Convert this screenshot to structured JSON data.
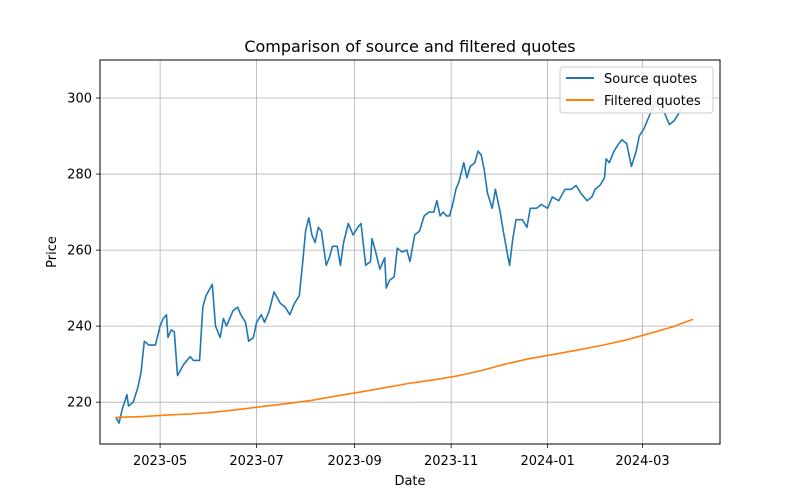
{
  "chart_data": {
    "type": "line",
    "title": "Comparison of source and filtered quotes",
    "xlabel": "Date",
    "ylabel": "Price",
    "xlim": [
      "2023-03-24",
      "2024-04-19"
    ],
    "ylim": [
      209,
      310
    ],
    "x_ticks": [
      "2023-05",
      "2023-07",
      "2023-09",
      "2023-11",
      "2024-01",
      "2024-03"
    ],
    "y_ticks": [
      220,
      240,
      260,
      280,
      300
    ],
    "grid": true,
    "legend_position": "top-right",
    "colors": {
      "source": "#1f77b4",
      "filtered": "#ff7f0e"
    },
    "series": [
      {
        "name": "Source quotes",
        "points": [
          [
            "2023-04-03",
            216
          ],
          [
            "2023-04-05",
            214.5
          ],
          [
            "2023-04-07",
            218
          ],
          [
            "2023-04-10",
            222
          ],
          [
            "2023-04-11",
            219
          ],
          [
            "2023-04-14",
            220
          ],
          [
            "2023-04-17",
            224
          ],
          [
            "2023-04-19",
            228
          ],
          [
            "2023-04-21",
            236
          ],
          [
            "2023-04-24",
            235
          ],
          [
            "2023-04-28",
            235
          ],
          [
            "2023-05-01",
            240
          ],
          [
            "2023-05-03",
            242
          ],
          [
            "2023-05-05",
            243
          ],
          [
            "2023-05-06",
            237
          ],
          [
            "2023-05-08",
            239
          ],
          [
            "2023-05-10",
            238.5
          ],
          [
            "2023-05-12",
            227
          ],
          [
            "2023-05-16",
            230
          ],
          [
            "2023-05-20",
            232
          ],
          [
            "2023-05-22",
            231
          ],
          [
            "2023-05-26",
            231
          ],
          [
            "2023-05-28",
            245
          ],
          [
            "2023-05-30",
            248
          ],
          [
            "2023-06-03",
            251
          ],
          [
            "2023-06-05",
            240
          ],
          [
            "2023-06-08",
            237
          ],
          [
            "2023-06-10",
            242
          ],
          [
            "2023-06-12",
            240
          ],
          [
            "2023-06-16",
            244
          ],
          [
            "2023-06-19",
            245
          ],
          [
            "2023-06-21",
            243
          ],
          [
            "2023-06-24",
            241
          ],
          [
            "2023-06-26",
            236
          ],
          [
            "2023-06-29",
            237
          ],
          [
            "2023-07-01",
            241
          ],
          [
            "2023-07-04",
            243
          ],
          [
            "2023-07-06",
            241
          ],
          [
            "2023-07-09",
            244
          ],
          [
            "2023-07-12",
            249
          ],
          [
            "2023-07-16",
            246
          ],
          [
            "2023-07-19",
            245
          ],
          [
            "2023-07-22",
            243
          ],
          [
            "2023-07-25",
            246
          ],
          [
            "2023-07-28",
            248
          ],
          [
            "2023-07-30",
            256
          ],
          [
            "2023-08-01",
            265
          ],
          [
            "2023-08-03",
            268.5
          ],
          [
            "2023-08-05",
            264
          ],
          [
            "2023-08-07",
            262
          ],
          [
            "2023-08-09",
            266
          ],
          [
            "2023-08-11",
            265
          ],
          [
            "2023-08-14",
            256
          ],
          [
            "2023-08-16",
            258
          ],
          [
            "2023-08-18",
            261
          ],
          [
            "2023-08-21",
            261
          ],
          [
            "2023-08-23",
            256
          ],
          [
            "2023-08-25",
            262
          ],
          [
            "2023-08-28",
            267
          ],
          [
            "2023-08-31",
            264
          ],
          [
            "2023-09-03",
            266
          ],
          [
            "2023-09-05",
            267
          ],
          [
            "2023-09-08",
            256
          ],
          [
            "2023-09-11",
            257
          ],
          [
            "2023-09-12",
            263
          ],
          [
            "2023-09-14",
            260
          ],
          [
            "2023-09-17",
            255
          ],
          [
            "2023-09-20",
            258
          ],
          [
            "2023-09-21",
            250
          ],
          [
            "2023-09-23",
            252
          ],
          [
            "2023-09-26",
            253
          ],
          [
            "2023-09-28",
            260.5
          ],
          [
            "2023-10-01",
            259.5
          ],
          [
            "2023-10-04",
            260
          ],
          [
            "2023-10-06",
            257
          ],
          [
            "2023-10-09",
            264
          ],
          [
            "2023-10-12",
            265
          ],
          [
            "2023-10-15",
            269
          ],
          [
            "2023-10-18",
            270
          ],
          [
            "2023-10-21",
            270
          ],
          [
            "2023-10-23",
            273
          ],
          [
            "2023-10-25",
            269
          ],
          [
            "2023-10-27",
            270
          ],
          [
            "2023-10-29",
            269
          ],
          [
            "2023-10-31",
            269
          ],
          [
            "2023-11-02",
            272
          ],
          [
            "2023-11-04",
            276
          ],
          [
            "2023-11-06",
            278
          ],
          [
            "2023-11-09",
            283
          ],
          [
            "2023-11-11",
            279
          ],
          [
            "2023-11-13",
            282
          ],
          [
            "2023-11-16",
            283
          ],
          [
            "2023-11-18",
            286
          ],
          [
            "2023-11-20",
            285
          ],
          [
            "2023-11-22",
            281
          ],
          [
            "2023-11-24",
            275
          ],
          [
            "2023-11-27",
            271
          ],
          [
            "2023-11-29",
            276
          ],
          [
            "2023-12-02",
            270
          ],
          [
            "2023-12-04",
            265
          ],
          [
            "2023-12-07",
            258
          ],
          [
            "2023-12-08",
            256
          ],
          [
            "2023-12-10",
            263
          ],
          [
            "2023-12-12",
            268
          ],
          [
            "2023-12-16",
            268
          ],
          [
            "2023-12-19",
            266
          ],
          [
            "2023-12-21",
            271
          ],
          [
            "2023-12-25",
            271
          ],
          [
            "2023-12-28",
            272
          ],
          [
            "2024-01-01",
            271
          ],
          [
            "2024-01-04",
            274
          ],
          [
            "2024-01-08",
            273
          ],
          [
            "2024-01-12",
            276
          ],
          [
            "2024-01-16",
            276
          ],
          [
            "2024-01-19",
            277
          ],
          [
            "2024-01-22",
            275
          ],
          [
            "2024-01-26",
            273
          ],
          [
            "2024-01-29",
            274
          ],
          [
            "2024-01-31",
            276
          ],
          [
            "2024-02-03",
            277
          ],
          [
            "2024-02-06",
            279
          ],
          [
            "2024-02-07",
            284
          ],
          [
            "2024-02-09",
            283
          ],
          [
            "2024-02-12",
            286
          ],
          [
            "2024-02-15",
            288
          ],
          [
            "2024-02-17",
            289
          ],
          [
            "2024-02-20",
            288
          ],
          [
            "2024-02-23",
            282
          ],
          [
            "2024-02-26",
            286
          ],
          [
            "2024-02-28",
            290
          ],
          [
            "2024-03-02",
            292
          ],
          [
            "2024-03-06",
            296
          ],
          [
            "2024-03-09",
            299
          ],
          [
            "2024-03-12",
            297
          ],
          [
            "2024-03-15",
            296
          ],
          [
            "2024-03-18",
            293
          ],
          [
            "2024-03-21",
            294
          ],
          [
            "2024-03-24",
            296
          ],
          [
            "2024-03-27",
            298
          ],
          [
            "2024-03-30",
            299
          ]
        ]
      },
      {
        "name": "Filtered quotes",
        "points": [
          [
            "2023-04-03",
            216
          ],
          [
            "2023-04-20",
            216.2
          ],
          [
            "2023-05-05",
            216.6
          ],
          [
            "2023-05-20",
            216.9
          ],
          [
            "2023-06-05",
            217.4
          ],
          [
            "2023-06-20",
            218.1
          ],
          [
            "2023-07-05",
            218.9
          ],
          [
            "2023-07-20",
            219.6
          ],
          [
            "2023-08-05",
            220.5
          ],
          [
            "2023-08-20",
            221.6
          ],
          [
            "2023-09-05",
            222.7
          ],
          [
            "2023-09-20",
            223.8
          ],
          [
            "2023-10-05",
            224.9
          ],
          [
            "2023-10-20",
            225.8
          ],
          [
            "2023-11-05",
            226.9
          ],
          [
            "2023-11-20",
            228.3
          ],
          [
            "2023-12-05",
            230
          ],
          [
            "2023-12-20",
            231.4
          ],
          [
            "2024-01-05",
            232.6
          ],
          [
            "2024-01-20",
            233.7
          ],
          [
            "2024-02-05",
            235
          ],
          [
            "2024-02-20",
            236.4
          ],
          [
            "2024-03-05",
            238
          ],
          [
            "2024-03-20",
            239.8
          ],
          [
            "2024-04-02",
            241.8
          ]
        ]
      }
    ]
  }
}
